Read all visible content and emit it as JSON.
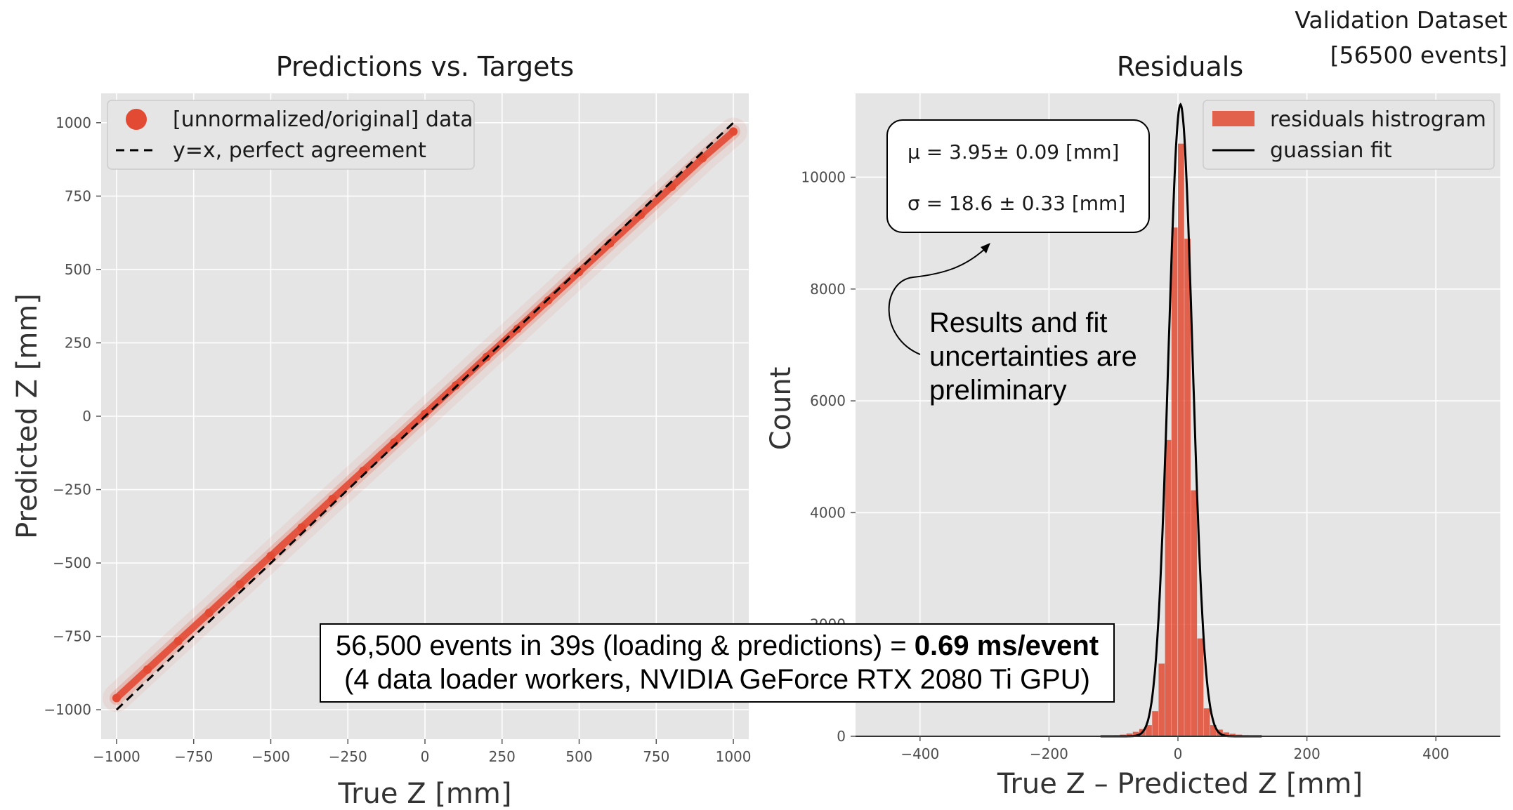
{
  "corner_label": {
    "line1": "Validation Dataset",
    "line2": "[56500 events]"
  },
  "timing_box": {
    "line1_text": "56,500 events in 39s (loading & predictions) = ",
    "line1_bold": "0.69 ms/event",
    "line2": "(4 data loader workers, NVIDIA GeForce RTX 2080 Ti GPU)"
  },
  "colors": {
    "axes_bg": "#e5e5e5",
    "grid": "#ffffff",
    "data": "#e24a33",
    "hist": "#e24a33",
    "fit": "#000000"
  },
  "chart_data": [
    {
      "type": "scatter",
      "title": "Predictions vs. Targets",
      "xlabel": "True Z [mm]",
      "ylabel": "Predicted Z [mm]",
      "xlim": [
        -1050,
        1050
      ],
      "ylim": [
        -1100,
        1100
      ],
      "xticks": [
        -1000,
        -750,
        -500,
        -250,
        0,
        250,
        500,
        750,
        1000
      ],
      "xtick_labels": [
        "−1000",
        "−750",
        "−500",
        "−250",
        "0",
        "250",
        "500",
        "750",
        "1000"
      ],
      "yticks": [
        -1000,
        -750,
        -500,
        -250,
        0,
        250,
        500,
        750,
        1000
      ],
      "ytick_labels": [
        "−1000",
        "−750",
        "−500",
        "−250",
        "0",
        "250",
        "500",
        "750",
        "1000"
      ],
      "grid": true,
      "legend_position": "top-left",
      "series": [
        {
          "name": "[unnormalized/original] data",
          "kind": "points",
          "color": "#e24a33",
          "x": [
            -1000,
            -900,
            -800,
            -700,
            -600,
            -500,
            -400,
            -300,
            -200,
            -100,
            0,
            100,
            200,
            300,
            400,
            500,
            600,
            700,
            800,
            900,
            1000
          ],
          "y": [
            -960,
            -863,
            -766,
            -670,
            -573,
            -476,
            -379,
            -282,
            -186,
            -89,
            8,
            105,
            202,
            298,
            395,
            492,
            589,
            686,
            782,
            879,
            970
          ]
        },
        {
          "name": "y=x, perfect agreement",
          "kind": "line",
          "style": "dashed",
          "color": "#000000",
          "x": [
            -1000,
            1000
          ],
          "y": [
            -1000,
            1000
          ]
        }
      ]
    },
    {
      "type": "bar",
      "title": "Residuals",
      "xlabel": "True Z – Predicted Z [mm]",
      "ylabel": "Count",
      "xlim": [
        -500,
        500
      ],
      "ylim": [
        0,
        11500
      ],
      "xticks": [
        -400,
        -200,
        0,
        200,
        400
      ],
      "xtick_labels": [
        "−400",
        "−200",
        "0",
        "200",
        "400"
      ],
      "yticks": [
        0,
        2000,
        4000,
        6000,
        8000,
        10000
      ],
      "ytick_labels": [
        "0",
        "2000",
        "4000",
        "6000",
        "8000",
        "10000"
      ],
      "grid": true,
      "legend_position": "top-right",
      "bin_width": 10,
      "series": [
        {
          "name": "residuals histrogram",
          "kind": "histogram",
          "color": "#e24a33",
          "bin_centers": [
            -125,
            -115,
            -105,
            -95,
            -85,
            -75,
            -65,
            -55,
            -45,
            -35,
            -25,
            -15,
            -5,
            5,
            15,
            25,
            35,
            45,
            55,
            65,
            75,
            85,
            95,
            105,
            115,
            125
          ],
          "values": [
            5,
            8,
            12,
            20,
            30,
            50,
            80,
            130,
            200,
            450,
            1300,
            5300,
            9100,
            10600,
            8900,
            4400,
            1750,
            500,
            200,
            120,
            70,
            45,
            30,
            20,
            12,
            8
          ]
        },
        {
          "name": "guassian fit",
          "kind": "curve",
          "color": "#000000",
          "mu": 3.95,
          "sigma": 18.6,
          "amplitude": 11300
        }
      ],
      "stats": {
        "mu_text": "μ = 3.95± 0.09 [mm]",
        "sigma_text": "σ = 18.6 ± 0.33 [mm]"
      },
      "annotation": {
        "lines": [
          "Results and fit",
          "uncertainties are",
          "preliminary"
        ]
      }
    }
  ]
}
